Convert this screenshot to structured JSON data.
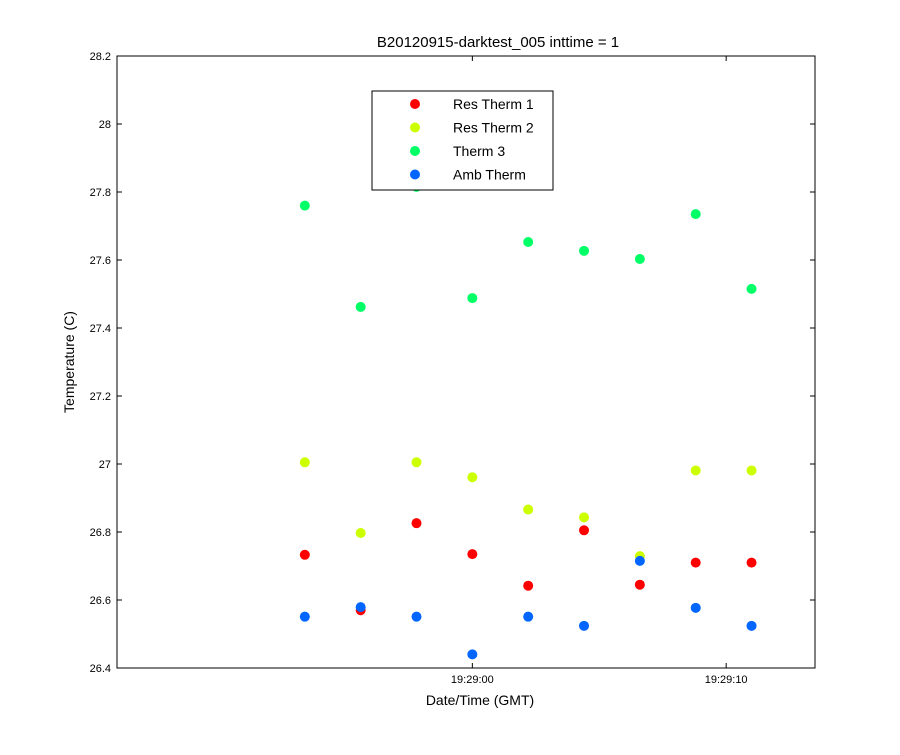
{
  "chart_data": {
    "type": "scatter",
    "title": "B20120915-darktest_005 inttime = 1",
    "xlabel": "Date/Time (GMT)",
    "ylabel": "Temperature (C)",
    "x_unit": "seconds relative to 19:29:00",
    "xlim": [
      -14,
      13.5
    ],
    "ylim": [
      26.4,
      28.2
    ],
    "x_ticks": [
      0,
      10
    ],
    "x_tick_labels": [
      "19:29:00",
      "19:29:10"
    ],
    "y_ticks": [
      26.4,
      26.6,
      26.8,
      27.0,
      27.2,
      27.4,
      27.6,
      27.8,
      28.0,
      28.2
    ],
    "y_tick_labels": [
      "26.4",
      "26.6",
      "26.8",
      "27",
      "27.2",
      "27.4",
      "27.6",
      "27.8",
      "28",
      "28.2"
    ],
    "grid": false,
    "legend_position": "top-center",
    "x": [
      -6.6,
      -4.4,
      -2.2,
      0.0,
      2.2,
      4.4,
      6.6,
      8.8,
      11.0
    ],
    "series": [
      {
        "name": "Res Therm 1",
        "color": "#ff0000",
        "values": [
          26.733,
          26.57,
          26.826,
          26.735,
          26.642,
          26.805,
          26.645,
          26.71,
          26.71
        ]
      },
      {
        "name": "Res Therm 2",
        "color": "#ccff00",
        "values": [
          27.005,
          26.797,
          27.005,
          26.961,
          26.866,
          26.843,
          26.729,
          26.981,
          26.981
        ]
      },
      {
        "name": "Therm 3",
        "color": "#00ff66",
        "values": [
          27.76,
          27.462,
          27.815,
          27.488,
          27.653,
          27.627,
          27.603,
          27.735,
          27.515
        ]
      },
      {
        "name": "Amb Therm",
        "color": "#0066ff",
        "values": [
          26.551,
          26.579,
          26.551,
          26.44,
          26.551,
          26.524,
          26.715,
          26.577,
          26.524
        ]
      }
    ]
  }
}
